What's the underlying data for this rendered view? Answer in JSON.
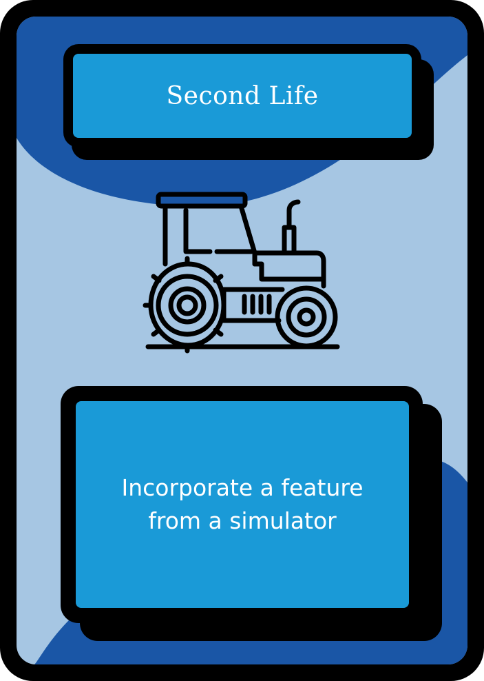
{
  "card": {
    "title": "Second Life",
    "description": "Incorporate a feature from a simulator",
    "icon": "tractor-icon"
  },
  "colors": {
    "outline": "#000000",
    "dark_blue": "#1a56a6",
    "light_blue": "#a6c6e3",
    "panel_blue": "#1a9ad7",
    "text": "#ffffff"
  }
}
